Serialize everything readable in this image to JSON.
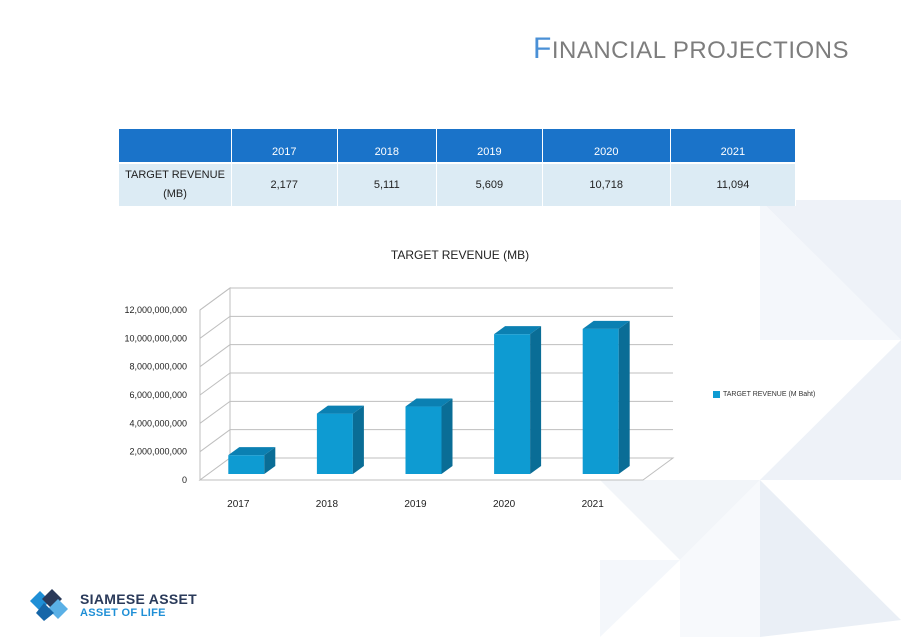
{
  "slide": {
    "title_first": "F",
    "title_rest": "inancial projections"
  },
  "table": {
    "headers": [
      "",
      "2017",
      "2018",
      "2019",
      "2020",
      "2021"
    ],
    "row": {
      "label_line1": "TARGET REVENUE",
      "label_line2": "(MB)",
      "values": [
        "2,177",
        "5,111",
        "5,609",
        "10,718",
        "11,094"
      ]
    }
  },
  "chart_data": {
    "type": "bar",
    "title": "TARGET REVENUE (MB)",
    "categories": [
      "2017",
      "2018",
      "2019",
      "2020",
      "2021"
    ],
    "series": [
      {
        "name": "TARGET REVENUE (M Baht)",
        "values": [
          2177000000,
          5111000000,
          5609000000,
          10718000000,
          11094000000
        ]
      }
    ],
    "ylim": [
      0,
      12000000000
    ],
    "yticks": [
      "0",
      "2,000,000,000",
      "4,000,000,000",
      "6,000,000,000",
      "8,000,000,000",
      "10,000,000,000",
      "12,000,000,000"
    ],
    "legend_position": "right",
    "grid": true,
    "bar_color": "#0e9bd2",
    "bar_side_color": "#0a6d96",
    "bar_top_color": "#0b80b2"
  },
  "brand": {
    "name": "SIAMESE ASSET",
    "tagline": "ASSET OF LIFE"
  }
}
